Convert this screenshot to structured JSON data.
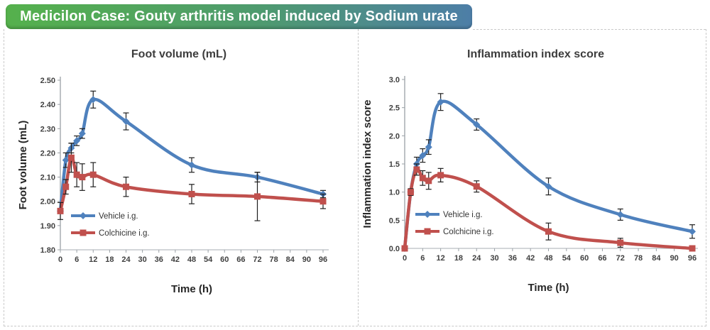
{
  "banner": {
    "text": "Medicilon Case: Gouty arthritis model induced by Sodium urate",
    "gradient_from": "#55b14c",
    "gradient_to": "#4d7ea7",
    "text_color": "#ffffff"
  },
  "colors": {
    "vehicle_blue": "#4f81bd",
    "colchicine_red": "#c0504d",
    "axis_line": "#9aa0a6",
    "baseline": "#b9bdc2",
    "error_bar": "#1f1f1f",
    "panel_border_dashed": "#c9c9c9",
    "title_text": "#3d3d3d"
  },
  "chart_data": [
    {
      "type": "line",
      "title": "Foot volume (mL)",
      "xlabel": "Time (h)",
      "ylabel": "Foot volume (mL)",
      "xlim": [
        0,
        96
      ],
      "ylim": [
        1.8,
        2.5
      ],
      "y_step": 0.1,
      "y_decimals": 2,
      "grid": false,
      "x_ticks": [
        0,
        6,
        12,
        18,
        24,
        30,
        36,
        42,
        48,
        54,
        60,
        66,
        72,
        78,
        84,
        90,
        96
      ],
      "y_tick_labels": [
        "1.80",
        "1.90",
        "2.00",
        "2.10",
        "2.20",
        "2.30",
        "2.40",
        "2.50"
      ],
      "x": [
        0,
        2,
        4,
        6,
        8,
        12,
        24,
        48,
        72,
        96
      ],
      "legend_position": "inside-bottom-left",
      "series": [
        {
          "name": "Vehicle i.g.",
          "color": "#4f81bd",
          "marker": "diamond",
          "values": [
            1.96,
            2.17,
            2.22,
            2.25,
            2.28,
            2.42,
            2.33,
            2.15,
            2.1,
            2.03
          ],
          "errors": [
            0,
            0.03,
            0.02,
            0.02,
            0.02,
            0.035,
            0.035,
            0.03,
            0.02,
            0.015
          ]
        },
        {
          "name": "Colchicine i.g.",
          "color": "#c0504d",
          "marker": "square",
          "values": [
            1.96,
            2.06,
            2.18,
            2.11,
            2.1,
            2.11,
            2.06,
            2.03,
            2.02,
            2.0
          ],
          "errors": [
            0.035,
            0.03,
            0.06,
            0.05,
            0.055,
            0.05,
            0.04,
            0.04,
            0.1,
            0.03
          ]
        }
      ]
    },
    {
      "type": "line",
      "title": "Inflammation index score",
      "xlabel": "Time (h)",
      "ylabel": "Inflammation index score",
      "xlim": [
        0,
        96
      ],
      "ylim": [
        0.0,
        3.0
      ],
      "y_step": 0.5,
      "y_decimals": 1,
      "grid": false,
      "x_ticks": [
        0,
        6,
        12,
        18,
        24,
        30,
        36,
        42,
        48,
        54,
        60,
        66,
        72,
        78,
        84,
        90,
        96
      ],
      "y_tick_labels": [
        "0.0",
        "0.5",
        "1.0",
        "1.5",
        "2.0",
        "2.5",
        "3.0"
      ],
      "x": [
        0,
        2,
        4,
        6,
        8,
        12,
        24,
        48,
        72,
        96
      ],
      "legend_position": "inside-bottom-left",
      "series": [
        {
          "name": "Vehicle i.g.",
          "color": "#4f81bd",
          "marker": "diamond",
          "values": [
            0.0,
            1.0,
            1.5,
            1.65,
            1.8,
            2.6,
            2.2,
            1.1,
            0.6,
            0.3
          ],
          "errors": [
            0,
            0.05,
            0.12,
            0.12,
            0.13,
            0.15,
            0.1,
            0.15,
            0.1,
            0.12
          ]
        },
        {
          "name": "Colchicine i.g.",
          "color": "#c0504d",
          "marker": "square",
          "values": [
            0.0,
            1.0,
            1.4,
            1.25,
            1.2,
            1.3,
            1.1,
            0.3,
            0.1,
            0.0
          ],
          "errors": [
            0,
            0.06,
            0.1,
            0.13,
            0.15,
            0.12,
            0.1,
            0.15,
            0.08,
            0.02
          ]
        }
      ]
    }
  ]
}
